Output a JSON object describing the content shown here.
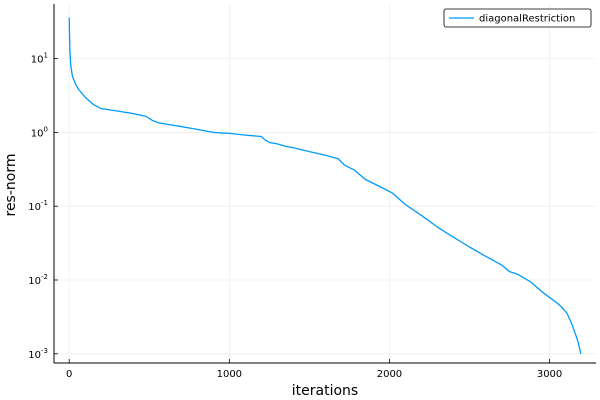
{
  "chart_data": {
    "type": "line",
    "xlabel": "iterations",
    "ylabel": "res-norm",
    "x_scale": "linear",
    "y_scale": "log10",
    "xlim": [
      -95,
      3290
    ],
    "ylim": [
      0.00075,
      55
    ],
    "x_ticks": [
      0,
      1000,
      2000,
      3000
    ],
    "x_tick_labels": [
      "0",
      "1000",
      "2000",
      "3000"
    ],
    "y_ticks": [
      0.001,
      0.01,
      0.1,
      1,
      10
    ],
    "y_tick_labels": [
      {
        "base": "10",
        "exp": "-3"
      },
      {
        "base": "10",
        "exp": "-2"
      },
      {
        "base": "10",
        "exp": "-1"
      },
      {
        "base": "10",
        "exp": "0"
      },
      {
        "base": "10",
        "exp": "1"
      }
    ],
    "grid": true,
    "legend_position": "top-right",
    "series": [
      {
        "name": "diagonalRestriction",
        "color": "#009af9",
        "x": [
          0,
          2,
          5,
          10,
          20,
          40,
          60,
          100,
          150,
          200,
          300,
          400,
          480,
          520,
          560,
          600,
          700,
          800,
          900,
          1000,
          1100,
          1200,
          1220,
          1250,
          1300,
          1350,
          1400,
          1500,
          1600,
          1680,
          1720,
          1780,
          1850,
          1950,
          2020,
          2100,
          2200,
          2300,
          2400,
          2500,
          2600,
          2700,
          2750,
          2800,
          2880,
          2950,
          3000,
          3050,
          3080,
          3110,
          3140,
          3160,
          3180,
          3195
        ],
        "y": [
          36,
          20,
          12,
          8,
          5.8,
          4.5,
          3.8,
          3.0,
          2.4,
          2.1,
          1.95,
          1.8,
          1.65,
          1.45,
          1.35,
          1.3,
          1.2,
          1.1,
          1.0,
          0.97,
          0.92,
          0.88,
          0.8,
          0.73,
          0.7,
          0.65,
          0.62,
          0.55,
          0.49,
          0.44,
          0.36,
          0.31,
          0.23,
          0.18,
          0.15,
          0.105,
          0.075,
          0.052,
          0.038,
          0.028,
          0.021,
          0.016,
          0.013,
          0.012,
          0.0095,
          0.007,
          0.0058,
          0.0048,
          0.0042,
          0.0035,
          0.0025,
          0.0019,
          0.0014,
          0.001
        ]
      }
    ]
  }
}
